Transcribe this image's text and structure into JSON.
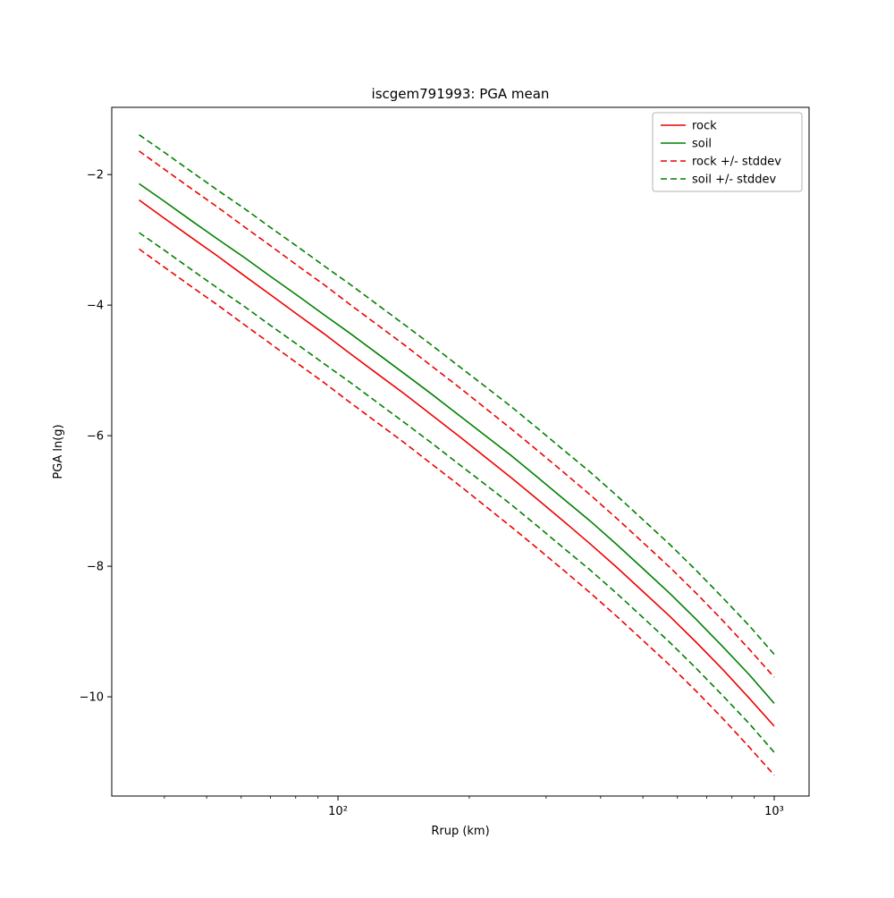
{
  "chart_data": {
    "type": "line",
    "title": "iscgem791993: PGA mean",
    "xlabel": "Rrup (km)",
    "ylabel": "PGA ln(g)",
    "xscale": "log",
    "grid": false,
    "legend_position": "upper right",
    "xlim": [
      30.3,
      1202
    ],
    "ylim": [
      -11.52,
      -0.97
    ],
    "yticks": [
      -2,
      -4,
      -6,
      -8,
      -10
    ],
    "xticks": [
      {
        "value": 100,
        "label": "10²"
      },
      {
        "value": 1000,
        "label": "10³"
      }
    ],
    "x_minor_ticks": [
      30,
      40,
      50,
      60,
      70,
      80,
      90,
      200,
      300,
      400,
      500,
      600,
      700,
      800,
      900
    ],
    "x": [
      35,
      40,
      46,
      53,
      61,
      70,
      81,
      93,
      107,
      123,
      142,
      163,
      188,
      216,
      249,
      286,
      329,
      379,
      436,
      501,
      577,
      664,
      764,
      879,
      1000
    ],
    "series": [
      {
        "name": "rock",
        "color": "#ee0000",
        "style": "solid",
        "values": [
          -2.39,
          -2.67,
          -2.96,
          -3.25,
          -3.55,
          -3.84,
          -4.15,
          -4.44,
          -4.75,
          -5.05,
          -5.36,
          -5.67,
          -5.99,
          -6.31,
          -6.64,
          -6.97,
          -7.31,
          -7.66,
          -8.02,
          -8.39,
          -8.77,
          -9.17,
          -9.59,
          -10.03,
          -10.45
        ]
      },
      {
        "name": "soil",
        "color": "#008000",
        "style": "solid",
        "values": [
          -2.14,
          -2.41,
          -2.7,
          -2.99,
          -3.27,
          -3.56,
          -3.86,
          -4.15,
          -4.44,
          -4.74,
          -5.05,
          -5.35,
          -5.67,
          -5.98,
          -6.3,
          -6.63,
          -6.97,
          -7.31,
          -7.67,
          -8.04,
          -8.42,
          -8.82,
          -9.24,
          -9.67,
          -10.1
        ]
      },
      {
        "name": "rock +/- stddev",
        "color": "#ee0000",
        "style": "dashed",
        "upper": [
          -1.64,
          -1.92,
          -2.21,
          -2.5,
          -2.8,
          -3.09,
          -3.4,
          -3.69,
          -4.0,
          -4.3,
          -4.61,
          -4.92,
          -5.24,
          -5.56,
          -5.89,
          -6.22,
          -6.56,
          -6.91,
          -7.27,
          -7.64,
          -8.02,
          -8.42,
          -8.84,
          -9.28,
          -9.7
        ],
        "lower": [
          -3.14,
          -3.42,
          -3.71,
          -4.0,
          -4.3,
          -4.59,
          -4.9,
          -5.19,
          -5.5,
          -5.8,
          -6.11,
          -6.42,
          -6.74,
          -7.06,
          -7.39,
          -7.72,
          -8.06,
          -8.41,
          -8.77,
          -9.14,
          -9.52,
          -9.92,
          -10.34,
          -10.78,
          -11.2
        ]
      },
      {
        "name": "soil +/- stddev",
        "color": "#008000",
        "style": "dashed",
        "upper": [
          -1.39,
          -1.66,
          -1.95,
          -2.24,
          -2.52,
          -2.81,
          -3.11,
          -3.4,
          -3.69,
          -3.99,
          -4.3,
          -4.6,
          -4.92,
          -5.23,
          -5.55,
          -5.88,
          -6.22,
          -6.56,
          -6.92,
          -7.29,
          -7.67,
          -8.07,
          -8.49,
          -8.92,
          -9.35
        ],
        "lower": [
          -2.89,
          -3.16,
          -3.45,
          -3.74,
          -4.02,
          -4.31,
          -4.61,
          -4.9,
          -5.19,
          -5.49,
          -5.8,
          -6.1,
          -6.42,
          -6.73,
          -7.05,
          -7.38,
          -7.72,
          -8.06,
          -8.42,
          -8.79,
          -9.17,
          -9.57,
          -9.99,
          -10.42,
          -10.85
        ]
      }
    ]
  }
}
